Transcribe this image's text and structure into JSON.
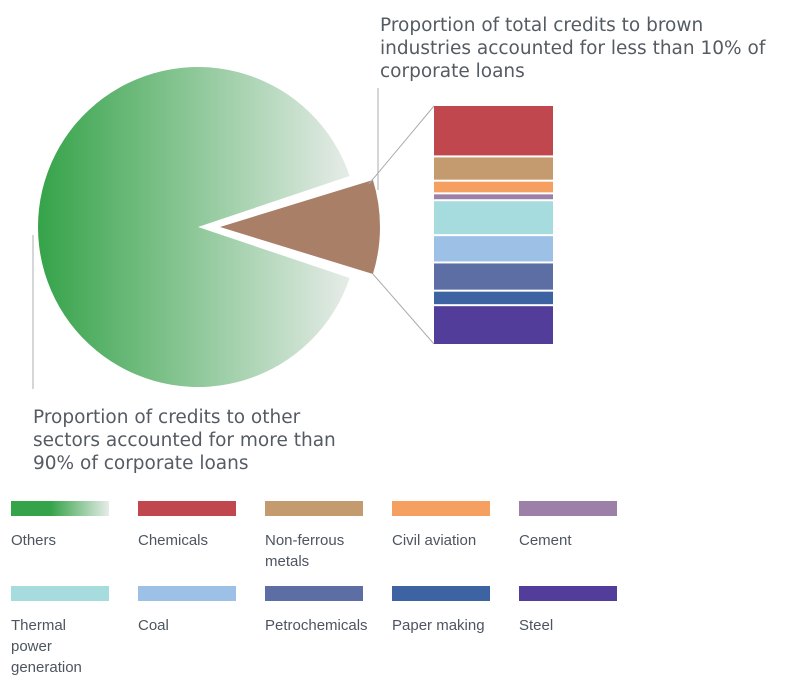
{
  "annotations": {
    "brown": "Proportion of total credits to brown industries accounted for less than 10% of corporate loans",
    "other": "Proportion of credits to other sectors accounted for more than 90% of corporate loans"
  },
  "chart_data": {
    "type": "pie",
    "subtype": "pie-of-bar",
    "pie": {
      "slices": [
        {
          "label": "Others",
          "share": 90.5,
          "color": "#35a349",
          "gradient_end": "#e6ece8"
        },
        {
          "label": "Brown industries",
          "share": 9.5,
          "color": "#a97f68",
          "exploded": true
        }
      ]
    },
    "bar": {
      "segments": [
        {
          "label": "Chemicals",
          "value": 21.3,
          "color": "#c0474e"
        },
        {
          "label": "Non-ferrous metals",
          "value": 9.6,
          "color": "#c49b6e"
        },
        {
          "label": "Civil aviation",
          "value": 4.6,
          "color": "#f5a060"
        },
        {
          "label": "Cement",
          "value": 2.1,
          "color": "#9c80a8"
        },
        {
          "label": "Thermal power generation",
          "value": 14.2,
          "color": "#a7dcde"
        },
        {
          "label": "Coal",
          "value": 10.9,
          "color": "#9dc0e6"
        },
        {
          "label": "Petrochemicals",
          "value": 11.3,
          "color": "#5d6ea4"
        },
        {
          "label": "Paper making",
          "value": 5.4,
          "color": "#3d63a3"
        },
        {
          "label": "Steel",
          "value": 16.3,
          "color": "#533d9a"
        }
      ]
    },
    "legend": {
      "position": "bottom",
      "items": [
        {
          "label": "Others",
          "color": "#35a349",
          "gradient_end": "#e6ece8"
        },
        {
          "label": "Chemicals",
          "color": "#c0474e"
        },
        {
          "label": "Non-ferrous metals",
          "color": "#c49b6e"
        },
        {
          "label": "Civil aviation",
          "color": "#f5a060"
        },
        {
          "label": "Cement",
          "color": "#9c80a8"
        },
        {
          "label": "Thermal power generation",
          "color": "#a7dcde"
        },
        {
          "label": "Coal",
          "color": "#9dc0e6"
        },
        {
          "label": "Petrochemicals",
          "color": "#5d6ea4"
        },
        {
          "label": "Paper making",
          "color": "#3d63a3"
        },
        {
          "label": "Steel",
          "color": "#533d9a"
        }
      ]
    }
  }
}
